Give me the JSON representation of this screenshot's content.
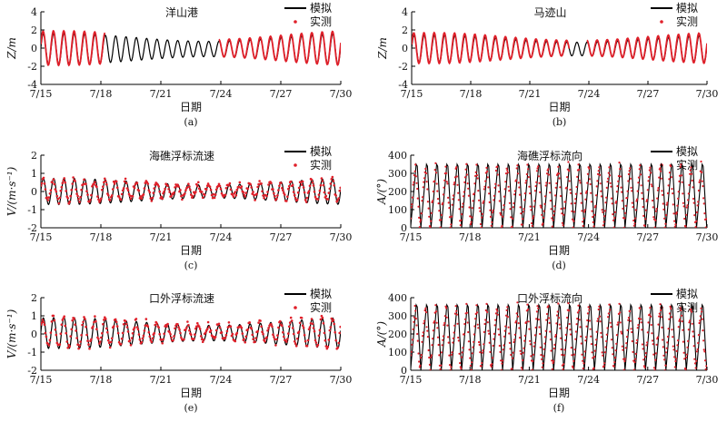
{
  "figure": {
    "background": "#ffffff"
  },
  "series_styles": {
    "model": {
      "color": "#000000"
    },
    "measured": {
      "color": "#e0202a"
    }
  },
  "chart_data": [
    {
      "id": "a",
      "type": "line",
      "title": "洋山港",
      "panel_label": "(a)",
      "xlabel": "日期",
      "ylabel": "Z/m",
      "x_ticks": [
        "7/15",
        "7/18",
        "7/21",
        "7/24",
        "7/27",
        "7/30"
      ],
      "xlim": [
        15,
        30
      ],
      "ylim": [
        -4,
        4
      ],
      "y_ticks": [
        -4,
        -2,
        0,
        2,
        4
      ],
      "legend_position": "top-right",
      "series": [
        {
          "name": "模拟",
          "kind": "line",
          "amplitude": 1.7,
          "period_days": 0.517,
          "offset": -0.1
        },
        {
          "name": "实测",
          "kind": "points",
          "segments": [
            [
              15.0,
              18.2
            ],
            [
              23.9,
              30.0
            ]
          ],
          "amplitude": 1.9,
          "period_days": 0.517,
          "offset": 0.0
        }
      ]
    },
    {
      "id": "b",
      "type": "line",
      "title": "马迹山",
      "panel_label": "(b)",
      "xlabel": "日期",
      "ylabel": "Z/m",
      "x_ticks": [
        "7/15",
        "7/18",
        "7/21",
        "7/24",
        "7/27",
        "7/30"
      ],
      "xlim": [
        15,
        30
      ],
      "ylim": [
        -4,
        4
      ],
      "y_ticks": [
        -4,
        -2,
        0,
        2,
        4
      ],
      "legend_position": "top-right",
      "series": [
        {
          "name": "模拟",
          "kind": "line",
          "amplitude": 1.5,
          "period_days": 0.517,
          "offset": -0.1
        },
        {
          "name": "实测",
          "kind": "points",
          "segments": [
            [
              15.0,
              23.0
            ],
            [
              23.9,
              30.0
            ]
          ],
          "amplitude": 1.7,
          "period_days": 0.517,
          "offset": 0.0
        }
      ]
    },
    {
      "id": "c",
      "type": "line",
      "title": "海礁浮标流速",
      "panel_label": "(c)",
      "xlabel": "日期",
      "ylabel": "V/(m·s⁻¹)",
      "x_ticks": [
        "7/15",
        "7/18",
        "7/21",
        "7/24",
        "7/27",
        "7/30"
      ],
      "xlim": [
        15,
        30
      ],
      "ylim": [
        -2,
        2
      ],
      "y_ticks": [
        -2,
        -1,
        0,
        1,
        2
      ],
      "legend_position": "top-right",
      "series": [
        {
          "name": "模拟",
          "kind": "line",
          "amplitude": 0.72,
          "period_days": 0.517,
          "offset": 0.0
        },
        {
          "name": "实测",
          "kind": "points",
          "segments": [
            [
              15.0,
              30.0
            ]
          ],
          "amplitude": 0.6,
          "period_days": 0.517,
          "offset": 0.05
        }
      ]
    },
    {
      "id": "d",
      "type": "line",
      "title": "海礁浮标流向",
      "panel_label": "(d)",
      "xlabel": "日期",
      "ylabel": "A/(°)",
      "x_ticks": [
        "7/15",
        "7/18",
        "7/21",
        "7/24",
        "7/27",
        "7/30"
      ],
      "xlim": [
        15,
        30
      ],
      "ylim": [
        0,
        400
      ],
      "y_ticks": [
        0,
        100,
        200,
        300,
        400
      ],
      "legend_position": "top-right",
      "series": [
        {
          "name": "模拟",
          "kind": "sawtooth-line",
          "min": 0,
          "max": 350,
          "period_days": 0.517
        },
        {
          "name": "实测",
          "kind": "sawtooth-points",
          "min": 0,
          "max": 350,
          "period_days": 0.517
        }
      ]
    },
    {
      "id": "e",
      "type": "line",
      "title": "口外浮标流速",
      "panel_label": "(e)",
      "xlabel": "日期",
      "ylabel": "V/(m·s⁻¹)",
      "x_ticks": [
        "7/15",
        "7/18",
        "7/21",
        "7/24",
        "7/27",
        "7/30"
      ],
      "xlim": [
        15,
        30
      ],
      "ylim": [
        -2,
        2
      ],
      "y_ticks": [
        -2,
        -1,
        0,
        1,
        2
      ],
      "legend_position": "top-right",
      "series": [
        {
          "name": "模拟",
          "kind": "line",
          "amplitude": 0.85,
          "period_days": 0.517,
          "offset": 0.05
        },
        {
          "name": "实测",
          "kind": "points",
          "segments": [
            [
              15.0,
              30.0
            ]
          ],
          "amplitude": 0.8,
          "period_days": 0.517,
          "offset": 0.1
        }
      ]
    },
    {
      "id": "f",
      "type": "line",
      "title": "口外浮标流向",
      "panel_label": "(f)",
      "xlabel": "日期",
      "ylabel": "A/(°)",
      "x_ticks": [
        "7/15",
        "7/18",
        "7/21",
        "7/24",
        "7/27",
        "7/30"
      ],
      "xlim": [
        15,
        30
      ],
      "ylim": [
        0,
        400
      ],
      "y_ticks": [
        0,
        100,
        200,
        300,
        400
      ],
      "legend_position": "top-right",
      "series": [
        {
          "name": "模拟",
          "kind": "sawtooth-line",
          "min": 0,
          "max": 360,
          "period_days": 0.517
        },
        {
          "name": "实测",
          "kind": "sawtooth-points",
          "min": 0,
          "max": 360,
          "period_days": 0.517
        }
      ]
    }
  ]
}
